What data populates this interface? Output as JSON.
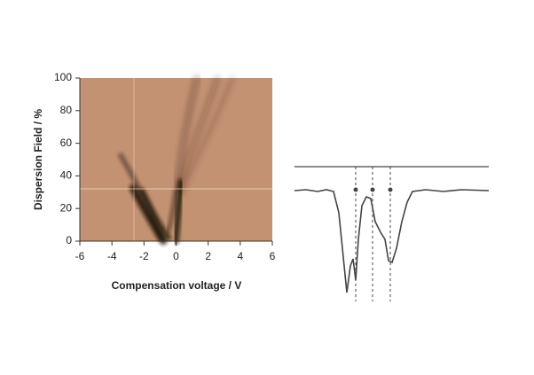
{
  "chart_data": {
    "type": "heatmap",
    "xlabel": "Compensation voltage / V",
    "ylabel": "Dispersion Field / %",
    "xlim": [
      -6,
      6
    ],
    "xticks": [
      -6,
      -4,
      -2,
      0,
      2,
      4,
      6
    ],
    "ylim": [
      0,
      100
    ],
    "yticks": [
      0,
      20,
      40,
      60,
      80,
      100
    ],
    "color": "#c39272"
  }
}
